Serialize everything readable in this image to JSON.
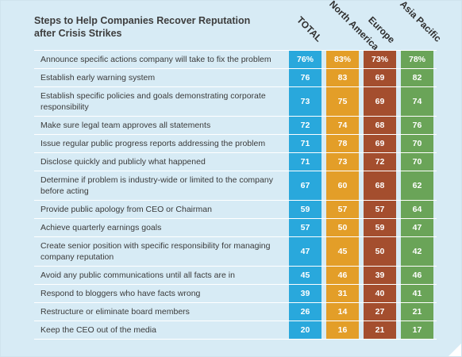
{
  "chart_data": {
    "type": "table",
    "title": "Steps to Help Companies Recover Reputation after Crisis Strikes",
    "columns": [
      "TOTAL",
      "North America",
      "Europe",
      "Asia Pacific"
    ],
    "colors": [
      "#29a8dc",
      "#e39e28",
      "#a44e2e",
      "#6aa458"
    ],
    "rows": [
      {
        "label": "Announce specific actions company will take to fix the problem",
        "values": [
          "76%",
          "83%",
          "73%",
          "78%"
        ]
      },
      {
        "label": "Establish early warning system",
        "values": [
          "76",
          "83",
          "69",
          "82"
        ]
      },
      {
        "label": "Establish specific policies and goals demonstrating corporate responsibility",
        "values": [
          "73",
          "75",
          "69",
          "74"
        ]
      },
      {
        "label": "Make sure legal team approves all statements",
        "values": [
          "72",
          "74",
          "68",
          "76"
        ]
      },
      {
        "label": "Issue regular public progress reports addressing the problem",
        "values": [
          "71",
          "78",
          "69",
          "70"
        ]
      },
      {
        "label": "Disclose quickly and publicly what happened",
        "values": [
          "71",
          "73",
          "72",
          "70"
        ]
      },
      {
        "label": "Determine if problem is industry-wide or limited to the company before acting",
        "values": [
          "67",
          "60",
          "68",
          "62"
        ]
      },
      {
        "label": "Provide public apology from CEO or Chairman",
        "values": [
          "59",
          "57",
          "57",
          "64"
        ]
      },
      {
        "label": "Achieve quarterly earnings goals",
        "values": [
          "57",
          "50",
          "59",
          "47"
        ]
      },
      {
        "label": "Create senior position with specific responsibility for managing company reputation",
        "values": [
          "47",
          "45",
          "50",
          "42"
        ]
      },
      {
        "label": "Avoid any public communications until all facts are in",
        "values": [
          "45",
          "46",
          "39",
          "46"
        ]
      },
      {
        "label": "Respond to bloggers who have facts wrong",
        "values": [
          "39",
          "31",
          "40",
          "41"
        ]
      },
      {
        "label": "Restructure or eliminate board members",
        "values": [
          "26",
          "14",
          "27",
          "21"
        ]
      },
      {
        "label": "Keep the CEO out of the media",
        "values": [
          "20",
          "16",
          "21",
          "17"
        ]
      }
    ]
  }
}
